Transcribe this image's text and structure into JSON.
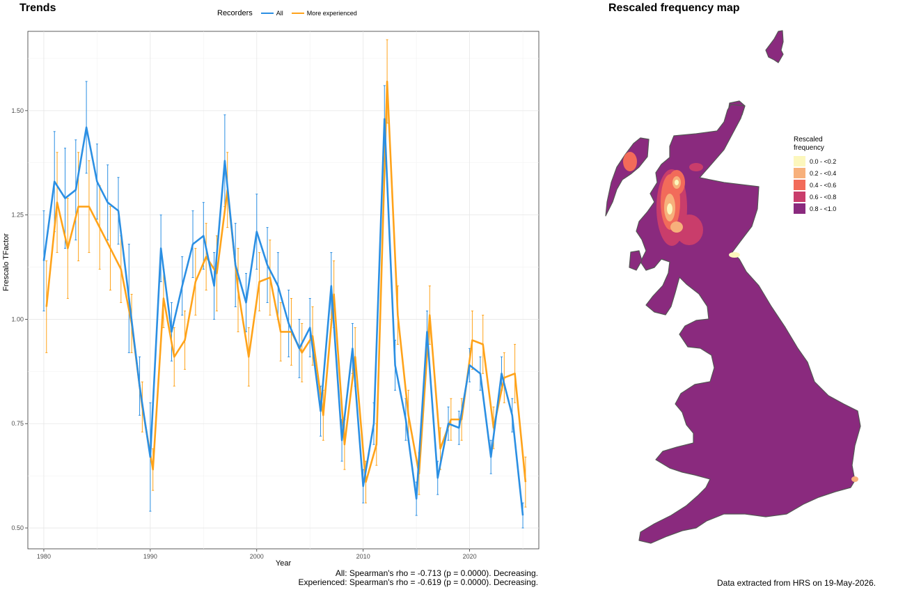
{
  "trends": {
    "title": "Trends",
    "legend_title": "Recorders",
    "stats_all": "All: Spearman's rho = -0.713 (p = 0.0000). Decreasing.",
    "stats_exp": "Experienced: Spearman's rho = -0.619 (p = 0.0000). Decreasing."
  },
  "map": {
    "title": "Rescaled frequency map",
    "legend_title": "Rescaled\nfrequency",
    "legend": [
      {
        "label": "0.0 - <0.2",
        "color": "#fcf7bd"
      },
      {
        "label": "0.2 - <0.4",
        "color": "#f7b07b"
      },
      {
        "label": "0.4 - <0.6",
        "color": "#f26b5a"
      },
      {
        "label": "0.6 - <0.8",
        "color": "#c93d6b"
      },
      {
        "label": "0.8 - <1.0",
        "color": "#8a2a7e"
      }
    ],
    "fill": "#8a2a7e",
    "coast": "#555555"
  },
  "credit": "Data extracted from HRS on 19-May-2026.",
  "chart_data": {
    "type": "line",
    "xlabel": "Year",
    "ylabel": "Frescalo TFactor",
    "xlim": [
      1978.5,
      2026.5
    ],
    "ylim": [
      0.45,
      1.69
    ],
    "xticks": [
      1980,
      1990,
      2000,
      2010,
      2020
    ],
    "yticks": [
      0.5,
      0.75,
      1.0,
      1.25,
      1.5
    ],
    "grid": true,
    "legend_position": "top",
    "series": [
      {
        "name": "All",
        "color": "#2b8fe3",
        "x": [
          1980,
          1981,
          1982,
          1983,
          1984,
          1985,
          1986,
          1987,
          1988,
          1989,
          1990,
          1991,
          1992,
          1993,
          1994,
          1995,
          1996,
          1997,
          1998,
          1999,
          2000,
          2001,
          2002,
          2003,
          2004,
          2005,
          2006,
          2007,
          2008,
          2009,
          2010,
          2011,
          2012,
          2013,
          2014,
          2015,
          2016,
          2017,
          2018,
          2019,
          2020,
          2021,
          2022,
          2023,
          2024,
          2025
        ],
        "y": [
          1.14,
          1.33,
          1.29,
          1.31,
          1.46,
          1.33,
          1.28,
          1.26,
          1.05,
          0.84,
          0.67,
          1.17,
          0.97,
          1.08,
          1.18,
          1.2,
          1.08,
          1.38,
          1.13,
          1.04,
          1.21,
          1.13,
          1.08,
          0.99,
          0.93,
          0.98,
          0.78,
          1.08,
          0.71,
          0.93,
          0.6,
          0.75,
          1.48,
          0.89,
          0.76,
          0.57,
          0.97,
          0.62,
          0.75,
          0.74,
          0.89,
          0.87,
          0.67,
          0.87,
          0.77,
          0.53
        ],
        "err": [
          0.12,
          0.12,
          0.12,
          0.12,
          0.11,
          0.09,
          0.09,
          0.08,
          0.13,
          0.07,
          0.13,
          0.08,
          0.07,
          0.07,
          0.08,
          0.08,
          0.08,
          0.11,
          0.1,
          0.07,
          0.09,
          0.09,
          0.08,
          0.08,
          0.07,
          0.07,
          0.06,
          0.08,
          0.05,
          0.06,
          0.04,
          0.05,
          0.08,
          0.06,
          0.05,
          0.04,
          0.05,
          0.04,
          0.04,
          0.04,
          0.04,
          0.04,
          0.04,
          0.04,
          0.04,
          0.03
        ]
      },
      {
        "name": "More experienced",
        "color": "#ffa31a",
        "x": [
          1980,
          1981,
          1982,
          1983,
          1984,
          1985,
          1986,
          1987,
          1988,
          1989,
          1990,
          1991,
          1992,
          1993,
          1994,
          1995,
          1996,
          1997,
          1998,
          1999,
          2000,
          2001,
          2002,
          2003,
          2004,
          2005,
          2006,
          2007,
          2008,
          2009,
          2010,
          2011,
          2012,
          2013,
          2014,
          2015,
          2016,
          2017,
          2018,
          2019,
          2020,
          2021,
          2022,
          2023,
          2024,
          2025
        ],
        "y": [
          1.03,
          1.28,
          1.17,
          1.27,
          1.27,
          1.22,
          1.17,
          1.12,
          0.99,
          0.79,
          0.64,
          1.05,
          0.91,
          0.95,
          1.09,
          1.15,
          1.11,
          1.31,
          1.07,
          0.91,
          1.09,
          1.1,
          0.97,
          0.97,
          0.92,
          0.96,
          0.77,
          1.06,
          0.7,
          0.91,
          0.61,
          0.7,
          1.57,
          1.01,
          0.77,
          0.63,
          1.01,
          0.69,
          0.76,
          0.76,
          0.95,
          0.94,
          0.74,
          0.86,
          0.87,
          0.61
        ],
        "err": [
          0.11,
          0.12,
          0.12,
          0.13,
          0.11,
          0.1,
          0.1,
          0.08,
          0.07,
          0.06,
          0.05,
          0.07,
          0.07,
          0.07,
          0.08,
          0.08,
          0.09,
          0.09,
          0.1,
          0.07,
          0.07,
          0.09,
          0.07,
          0.08,
          0.07,
          0.07,
          0.06,
          0.08,
          0.06,
          0.07,
          0.05,
          0.05,
          0.1,
          0.07,
          0.06,
          0.05,
          0.07,
          0.05,
          0.05,
          0.05,
          0.07,
          0.07,
          0.05,
          0.06,
          0.07,
          0.06
        ]
      }
    ]
  }
}
